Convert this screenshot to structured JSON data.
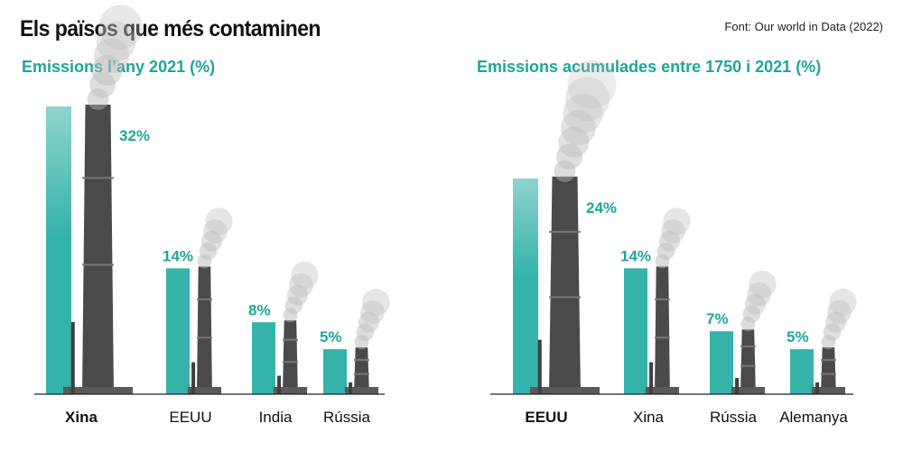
{
  "header": {
    "title": "Els països que més contaminen",
    "source": "Font: Our world in Data (2022)"
  },
  "colors": {
    "accent": "#1fa59b",
    "bar": "#35b3aa",
    "bar_faded": "#8fd3ce",
    "chimney": "#4a4a4a",
    "smoke": "#b5b5b5",
    "axis": "#222222"
  },
  "chart_data": [
    {
      "type": "bar",
      "title": "Emissions l’any 2021 (%)",
      "categories": [
        "Xina",
        "EEUU",
        "India",
        "Rússia"
      ],
      "values": [
        32,
        14,
        8,
        5
      ],
      "value_labels": [
        "32%",
        "14%",
        "8%",
        "5%"
      ],
      "highlight_category": "Xina",
      "ylim": [
        0,
        32
      ]
    },
    {
      "type": "bar",
      "title": "Emissions acumulades entre 1750 i 2021 (%)",
      "categories": [
        "EEUU",
        "Xina",
        "Rússia",
        "Alemanya"
      ],
      "values": [
        24,
        14,
        7,
        5
      ],
      "value_labels": [
        "24%",
        "14%",
        "7%",
        "5%"
      ],
      "highlight_category": "EEUU",
      "ylim": [
        0,
        32
      ]
    }
  ]
}
